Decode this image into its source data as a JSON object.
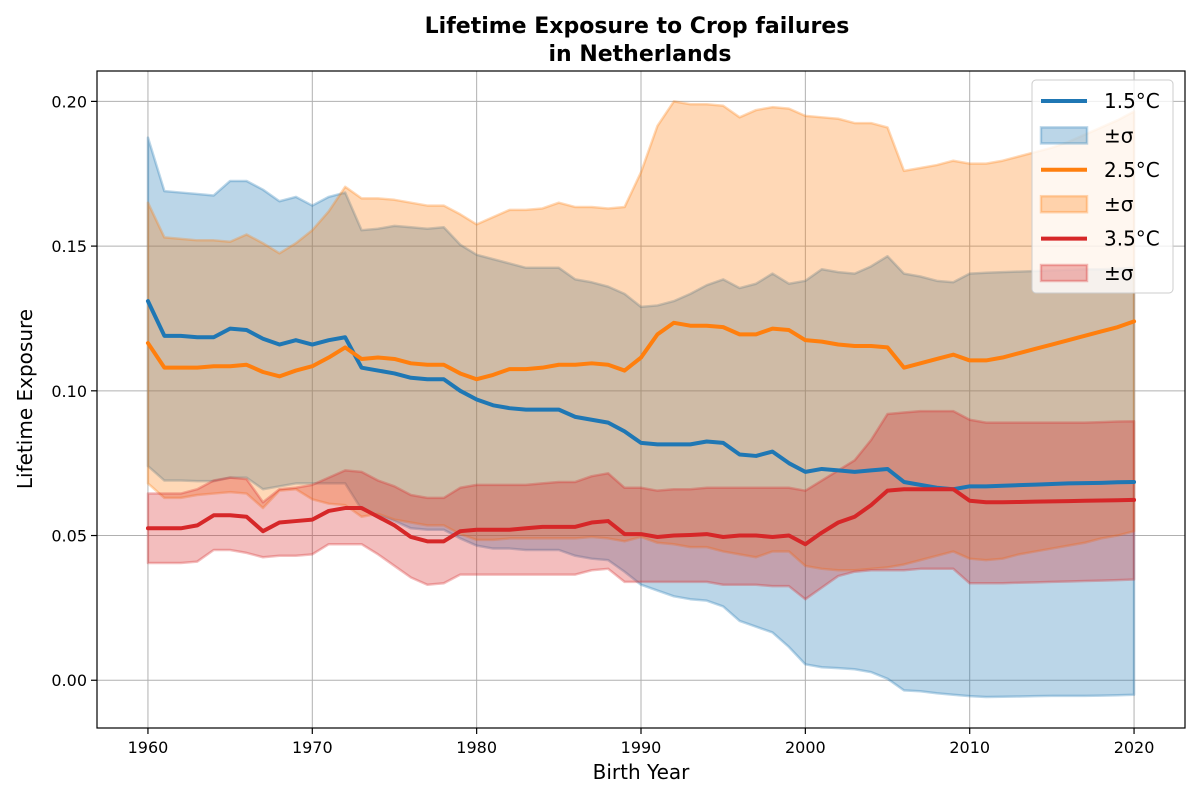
{
  "chart_data": {
    "type": "line",
    "title": [
      "Lifetime Exposure to Crop failures",
      "in Netherlands"
    ],
    "xlabel": "Birth Year",
    "ylabel": "Lifetime Exposure",
    "xlim": [
      1956.9,
      2023.1
    ],
    "ylim": [
      -0.0165,
      0.2105
    ],
    "xticks": [
      1960,
      1970,
      1980,
      1990,
      2000,
      2010,
      2020
    ],
    "xtick_labels": [
      "1960",
      "1970",
      "1980",
      "1990",
      "2000",
      "2010",
      "2020"
    ],
    "yticks": [
      0.0,
      0.05,
      0.1,
      0.15,
      0.2
    ],
    "ytick_labels": [
      "0.00",
      "0.05",
      "0.10",
      "0.15",
      "0.20"
    ],
    "grid": true,
    "legend_position": "top-right",
    "legend": [
      "1.5°C",
      "±σ",
      "2.5°C",
      "±σ",
      "3.5°C",
      "±σ"
    ],
    "x": [
      1960,
      1961,
      1962,
      1963,
      1964,
      1965,
      1966,
      1967,
      1968,
      1969,
      1970,
      1971,
      1972,
      1973,
      1974,
      1975,
      1976,
      1977,
      1978,
      1979,
      1980,
      1981,
      1982,
      1983,
      1984,
      1985,
      1986,
      1987,
      1988,
      1989,
      1990,
      1991,
      1992,
      1993,
      1994,
      1995,
      1996,
      1997,
      1998,
      1999,
      2000,
      2001,
      2002,
      2003,
      2004,
      2005,
      2006,
      2007,
      2008,
      2009,
      2010,
      2011,
      2012,
      2013,
      2014,
      2015,
      2016,
      2017,
      2018,
      2019,
      2020
    ],
    "series": [
      {
        "name": "1.5°C",
        "color": "#1f77b4",
        "values": [
          0.131,
          0.119,
          0.119,
          0.1185,
          0.1185,
          0.1215,
          0.121,
          0.118,
          0.116,
          0.1175,
          0.116,
          0.1175,
          0.1185,
          0.108,
          0.107,
          0.106,
          0.1045,
          0.104,
          0.104,
          0.1,
          0.097,
          0.095,
          0.094,
          0.0935,
          0.0935,
          0.0935,
          0.091,
          0.09,
          0.089,
          0.086,
          0.082,
          0.0815,
          0.0815,
          0.0815,
          0.0825,
          0.082,
          0.078,
          0.0775,
          0.079,
          0.075,
          0.072,
          0.073,
          0.0725,
          0.072,
          0.0725,
          0.073,
          0.0685,
          0.0675,
          0.0665,
          0.066,
          0.067,
          0.067,
          0.0672,
          0.0674,
          0.0676,
          0.0678,
          0.068,
          0.0681,
          0.0682,
          0.0684,
          0.0685
        ],
        "lower": [
          0.074,
          0.069,
          0.069,
          0.0688,
          0.0688,
          0.07,
          0.07,
          0.066,
          0.067,
          0.068,
          0.068,
          0.068,
          0.068,
          0.059,
          0.057,
          0.055,
          0.0525,
          0.052,
          0.052,
          0.049,
          0.0465,
          0.0455,
          0.0455,
          0.045,
          0.045,
          0.045,
          0.043,
          0.042,
          0.0415,
          0.0375,
          0.033,
          0.031,
          0.029,
          0.028,
          0.0275,
          0.0255,
          0.0205,
          0.0185,
          0.0165,
          0.0115,
          0.0055,
          0.0045,
          0.0042,
          0.0038,
          0.0028,
          0.0005,
          -0.0035,
          -0.0038,
          -0.0045,
          -0.005,
          -0.0055,
          -0.0058,
          -0.0057,
          -0.0056,
          -0.0055,
          -0.0054,
          -0.0054,
          -0.0054,
          -0.0053,
          -0.0052,
          -0.005
        ],
        "upper": [
          0.1875,
          0.169,
          0.1685,
          0.168,
          0.1675,
          0.1725,
          0.1725,
          0.1695,
          0.1655,
          0.167,
          0.164,
          0.167,
          0.1685,
          0.1555,
          0.156,
          0.157,
          0.1565,
          0.156,
          0.1565,
          0.1505,
          0.147,
          0.1455,
          0.144,
          0.1425,
          0.1425,
          0.1425,
          0.1385,
          0.1375,
          0.136,
          0.1335,
          0.129,
          0.1295,
          0.131,
          0.1335,
          0.1365,
          0.1385,
          0.1355,
          0.137,
          0.1405,
          0.137,
          0.138,
          0.142,
          0.141,
          0.1405,
          0.143,
          0.1465,
          0.1405,
          0.1395,
          0.138,
          0.1375,
          0.1405,
          0.1408,
          0.141,
          0.1412,
          0.1414,
          0.1416,
          0.1418,
          0.142,
          0.142,
          0.1422,
          0.1425
        ]
      },
      {
        "name": "2.5°C",
        "color": "#ff7f0e",
        "values": [
          0.1165,
          0.108,
          0.108,
          0.108,
          0.1085,
          0.1085,
          0.109,
          0.1065,
          0.105,
          0.107,
          0.1085,
          0.1115,
          0.115,
          0.111,
          0.1115,
          0.111,
          0.1095,
          0.109,
          0.109,
          0.106,
          0.104,
          0.1055,
          0.1075,
          0.1075,
          0.108,
          0.109,
          0.109,
          0.1095,
          0.109,
          0.107,
          0.1115,
          0.1195,
          0.1235,
          0.1225,
          0.1225,
          0.122,
          0.1195,
          0.1195,
          0.1215,
          0.121,
          0.1175,
          0.117,
          0.116,
          0.1155,
          0.1155,
          0.115,
          0.108,
          0.1095,
          0.111,
          0.1125,
          0.1105,
          0.1105,
          0.1115,
          0.113,
          0.1145,
          0.116,
          0.1175,
          0.119,
          0.1205,
          0.122,
          0.124
        ],
        "lower": [
          0.068,
          0.063,
          0.063,
          0.064,
          0.0645,
          0.065,
          0.0645,
          0.0595,
          0.0655,
          0.066,
          0.0625,
          0.061,
          0.0605,
          0.0565,
          0.0575,
          0.0555,
          0.0545,
          0.0535,
          0.0535,
          0.0505,
          0.0485,
          0.0485,
          0.049,
          0.049,
          0.049,
          0.049,
          0.049,
          0.0495,
          0.049,
          0.048,
          0.0495,
          0.0475,
          0.047,
          0.046,
          0.046,
          0.0445,
          0.0435,
          0.0425,
          0.0445,
          0.0445,
          0.0395,
          0.0385,
          0.038,
          0.038,
          0.0385,
          0.039,
          0.04,
          0.0415,
          0.043,
          0.0445,
          0.042,
          0.0415,
          0.042,
          0.0435,
          0.0445,
          0.0455,
          0.0465,
          0.0475,
          0.049,
          0.05,
          0.0515
        ],
        "upper": [
          0.165,
          0.153,
          0.1525,
          0.152,
          0.152,
          0.1515,
          0.154,
          0.151,
          0.1475,
          0.151,
          0.1555,
          0.162,
          0.1705,
          0.1665,
          0.1665,
          0.166,
          0.165,
          0.164,
          0.164,
          0.161,
          0.1575,
          0.16,
          0.1625,
          0.1625,
          0.163,
          0.165,
          0.1635,
          0.1635,
          0.163,
          0.1635,
          0.1755,
          0.1915,
          0.2,
          0.199,
          0.199,
          0.1985,
          0.1945,
          0.197,
          0.198,
          0.1975,
          0.195,
          0.1945,
          0.194,
          0.1925,
          0.1925,
          0.191,
          0.176,
          0.177,
          0.178,
          0.1795,
          0.1785,
          0.1785,
          0.1795,
          0.181,
          0.1825,
          0.184,
          0.186,
          0.1885,
          0.191,
          0.1935,
          0.1965
        ]
      },
      {
        "name": "3.5°C",
        "color": "#d62728",
        "values": [
          0.0525,
          0.0525,
          0.0525,
          0.0535,
          0.057,
          0.057,
          0.0565,
          0.0515,
          0.0545,
          0.055,
          0.0555,
          0.0585,
          0.0595,
          0.0595,
          0.0565,
          0.0535,
          0.0495,
          0.048,
          0.048,
          0.0515,
          0.052,
          0.052,
          0.052,
          0.0525,
          0.053,
          0.053,
          0.053,
          0.0545,
          0.055,
          0.0505,
          0.0505,
          0.0495,
          0.05,
          0.0502,
          0.0505,
          0.0495,
          0.05,
          0.05,
          0.0495,
          0.05,
          0.047,
          0.051,
          0.0545,
          0.0565,
          0.0605,
          0.0655,
          0.066,
          0.066,
          0.066,
          0.066,
          0.062,
          0.0615,
          0.0615,
          0.0616,
          0.0617,
          0.0618,
          0.0619,
          0.062,
          0.0621,
          0.0622,
          0.0623
        ],
        "lower": [
          0.0405,
          0.0405,
          0.0405,
          0.041,
          0.045,
          0.045,
          0.044,
          0.0425,
          0.043,
          0.043,
          0.0435,
          0.047,
          0.047,
          0.047,
          0.0435,
          0.0395,
          0.0355,
          0.033,
          0.0335,
          0.0365,
          0.0365,
          0.0365,
          0.0365,
          0.0365,
          0.0365,
          0.0365,
          0.0365,
          0.038,
          0.0385,
          0.034,
          0.034,
          0.034,
          0.034,
          0.034,
          0.034,
          0.033,
          0.033,
          0.033,
          0.0325,
          0.0325,
          0.028,
          0.032,
          0.036,
          0.0375,
          0.038,
          0.038,
          0.038,
          0.0385,
          0.0385,
          0.0385,
          0.0335,
          0.0335,
          0.0335,
          0.0337,
          0.0338,
          0.034,
          0.0341,
          0.0343,
          0.0344,
          0.0346,
          0.0348
        ],
        "upper": [
          0.0645,
          0.0645,
          0.0645,
          0.066,
          0.069,
          0.07,
          0.0695,
          0.0615,
          0.066,
          0.0665,
          0.0675,
          0.07,
          0.0725,
          0.072,
          0.069,
          0.067,
          0.064,
          0.063,
          0.063,
          0.0665,
          0.0675,
          0.0675,
          0.0675,
          0.0675,
          0.068,
          0.0685,
          0.0685,
          0.0705,
          0.0715,
          0.0665,
          0.0665,
          0.0655,
          0.066,
          0.066,
          0.0665,
          0.0665,
          0.0665,
          0.0665,
          0.0665,
          0.0665,
          0.0655,
          0.069,
          0.0725,
          0.076,
          0.083,
          0.092,
          0.0925,
          0.093,
          0.093,
          0.093,
          0.09,
          0.089,
          0.089,
          0.089,
          0.089,
          0.089,
          0.089,
          0.089,
          0.0892,
          0.0894,
          0.0895
        ]
      }
    ]
  }
}
